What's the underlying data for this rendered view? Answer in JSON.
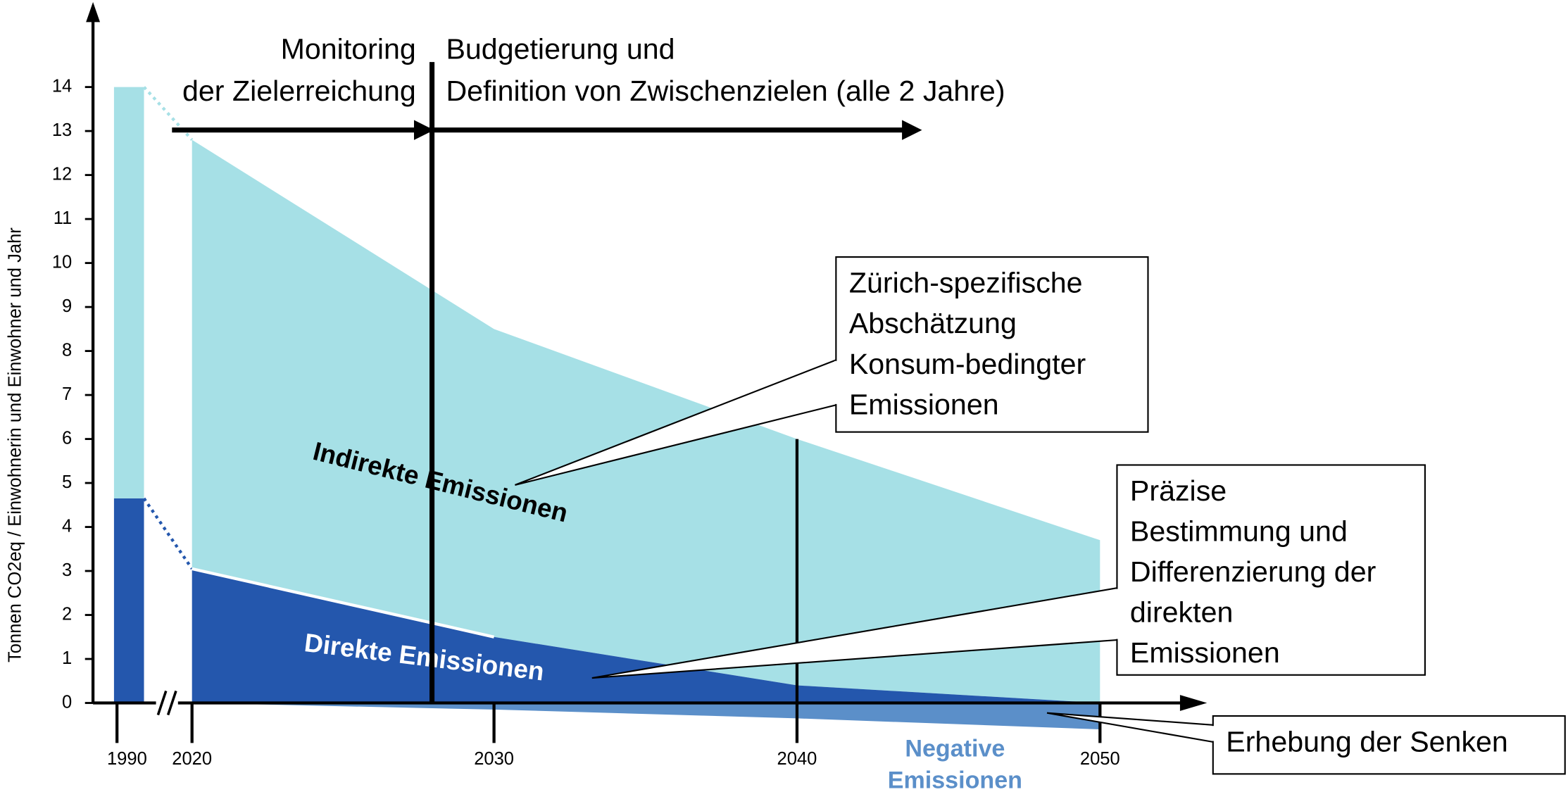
{
  "chart_data": {
    "type": "stacked-area",
    "y_label": "Tonnen CO2eq / Einwohnerin und Einwohner und Jahr",
    "categories": [
      "1990",
      "2020",
      "2030",
      "2040",
      "2050"
    ],
    "series": [
      {
        "name": "Direkte Emissionen",
        "color": "#2457ad",
        "values": [
          4.65,
          3.05,
          1.5,
          0.4,
          0
        ]
      },
      {
        "name": "Indirekte Emissionen",
        "color": "#a6e0e6",
        "values": [
          9.35,
          9.75,
          7.0,
          5.6,
          3.7
        ]
      },
      {
        "name": "Negative Emissionen",
        "color": "#5b8fc9",
        "values": [
          null,
          0,
          -0.15,
          -0.35,
          -0.6
        ]
      }
    ],
    "negative_label": [
      "Negative",
      "Emissionen"
    ],
    "ylim": [
      0,
      14
    ],
    "yticks": [
      0,
      1,
      2,
      3,
      4,
      5,
      6,
      7,
      8,
      9,
      10,
      11,
      12,
      13,
      14
    ],
    "annotations": {
      "monitoring": [
        "Monitoring",
        "der Zielerreichung"
      ],
      "budget": [
        "Budgetierung und",
        "Definition von Zwischenzielen (alle 2 Jahre)"
      ],
      "konsum": [
        "Zürich-spezifische",
        "Abschätzung",
        "Konsum-bedingter",
        "Emissionen"
      ],
      "direkt": [
        "Präzise",
        "Bestimmung und",
        "Differenzierung der",
        "direkten",
        "Emissionen"
      ],
      "senken": [
        "Erhebung der Senken"
      ]
    }
  }
}
